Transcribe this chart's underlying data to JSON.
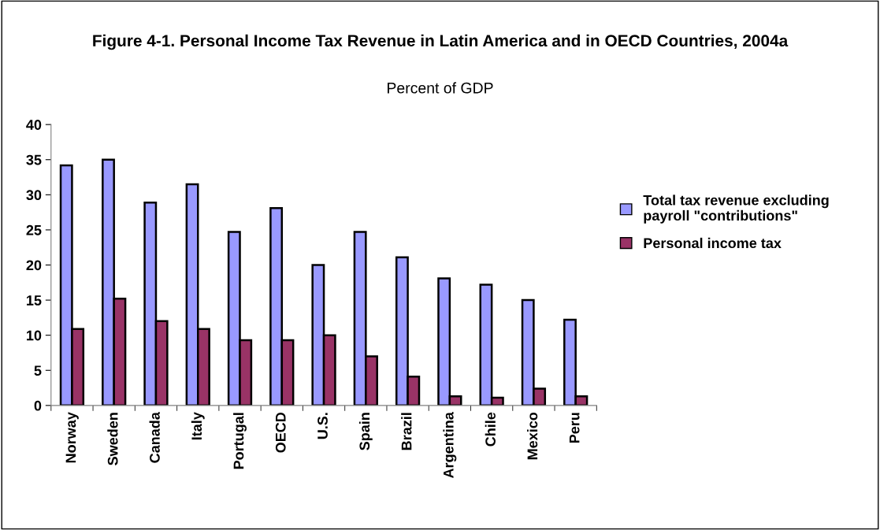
{
  "chart_data": {
    "type": "bar",
    "title": "Figure 4-1. Personal Income Tax Revenue in Latin America and in OECD Countries, 2004a",
    "subtitle": "Percent of GDP",
    "categories": [
      "Norway",
      "Sweden",
      "Canada",
      "Italy",
      "Portugal",
      "OECD",
      "U.S.",
      "Spain",
      "Brazil",
      "Argentina",
      "Chile",
      "Mexico",
      "Peru"
    ],
    "series": [
      {
        "name": "Total tax revenue excluding payroll \"contributions\"",
        "color": "#9999ff",
        "values": [
          34.2,
          35.0,
          28.9,
          31.5,
          24.7,
          28.1,
          20.0,
          24.7,
          21.1,
          18.1,
          17.2,
          15.0,
          12.2
        ]
      },
      {
        "name": "Personal income tax",
        "color": "#993366",
        "values": [
          10.9,
          15.2,
          12.0,
          10.9,
          9.3,
          9.3,
          10.0,
          7.0,
          4.1,
          1.3,
          1.1,
          2.4,
          1.3
        ]
      }
    ],
    "ylim": [
      0,
      40
    ],
    "yticks": [
      0,
      5,
      10,
      15,
      20,
      25,
      30,
      35,
      40
    ],
    "grid": false,
    "legend": "right"
  }
}
